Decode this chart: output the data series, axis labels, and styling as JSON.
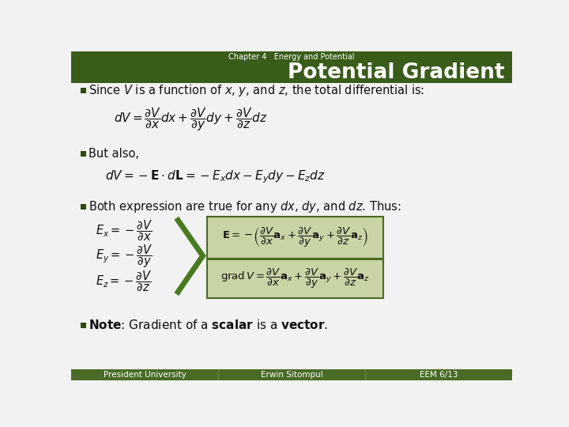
{
  "title_bar_text": "Chapter 4   Energy and Potential",
  "title_main": "Potential Gradient",
  "bg_color": "#f0f0f0",
  "dark_green": "#3a5c1a",
  "medium_green": "#4a6b25",
  "light_green_bg": "#c8d4a4",
  "header_bg": "#4a6b25",
  "bullet_color": "#2d4a10",
  "text_color": "#000000",
  "footer_items": [
    "President University",
    "Erwin Sitompul",
    "EEM 6/13"
  ],
  "arrow_color": "#4a7a20",
  "figw": 7.2,
  "figh": 5.4,
  "dpi": 100
}
